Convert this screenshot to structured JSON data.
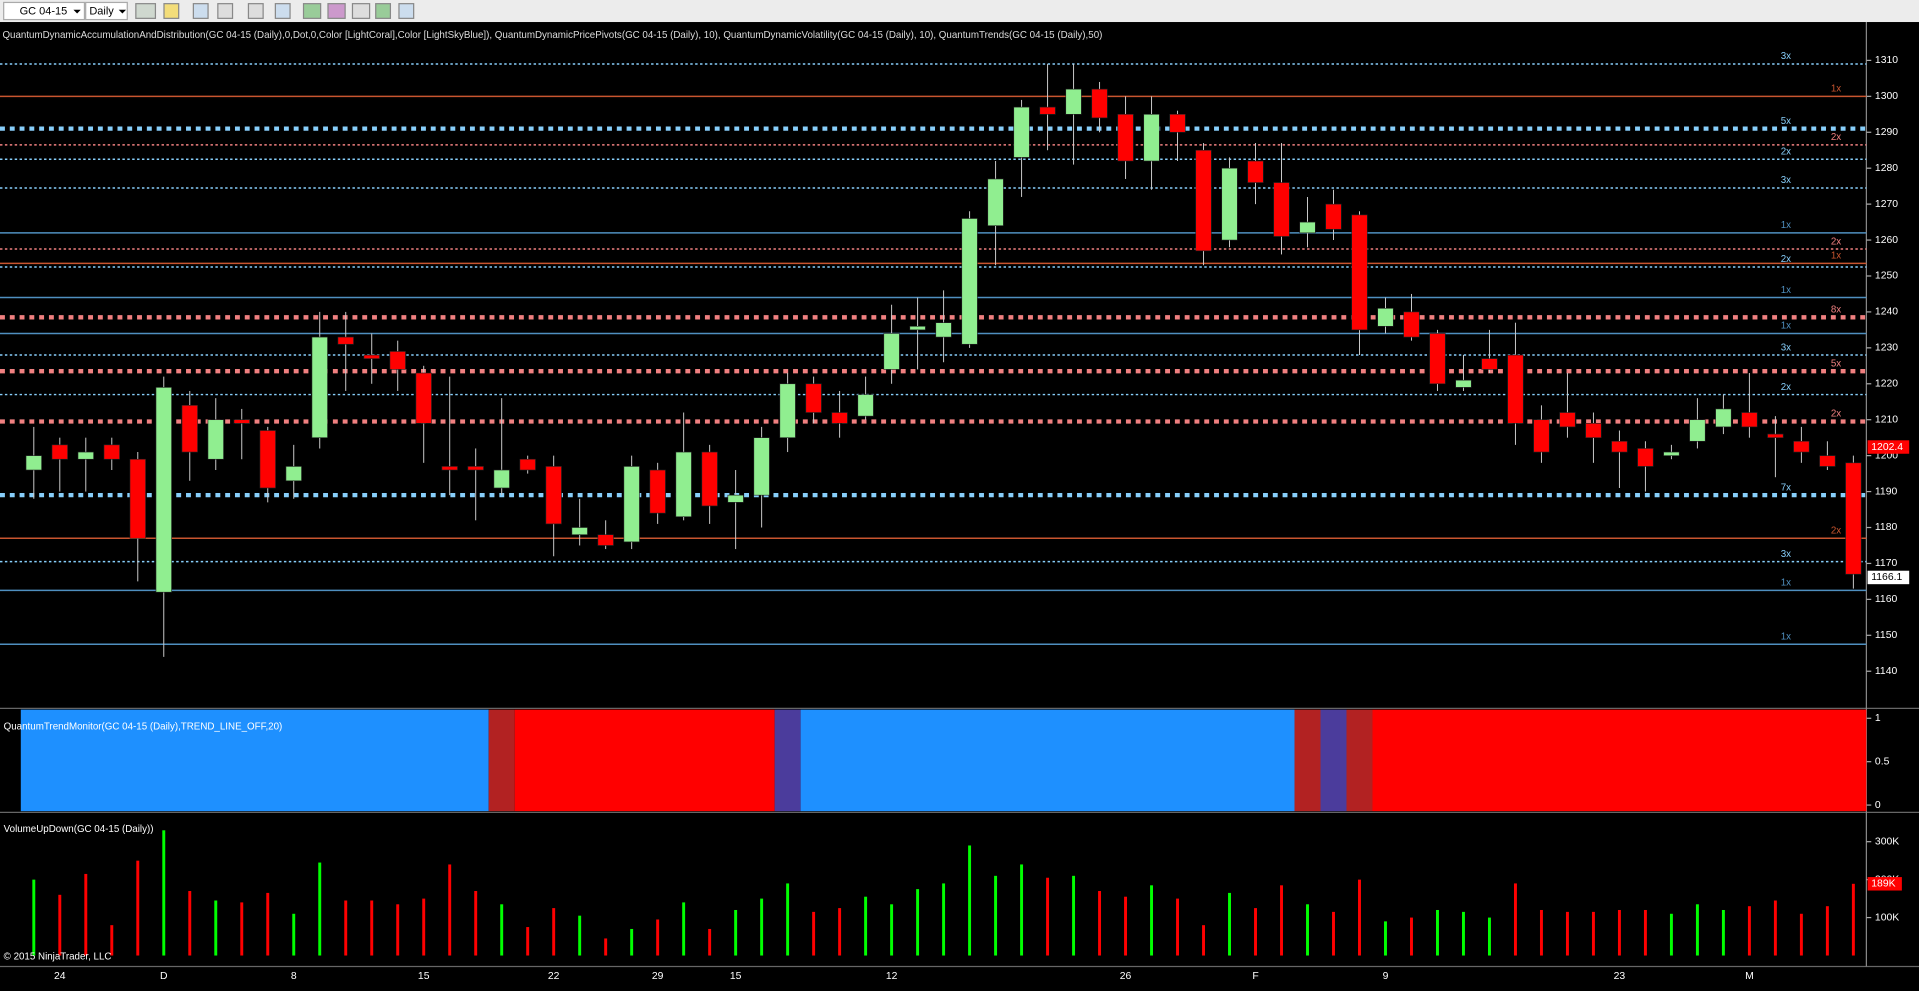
{
  "toolbar": {
    "instrument": "GC 04-15",
    "period": "Daily"
  },
  "copyright": "© 2015 NinjaTrader, LLC",
  "chart_data": [
    {
      "type": "candlestick",
      "title": "QuantumDynamicAccumulationAndDistribution(GC 04-15 (Daily),0,Dot,0,Color [LightCoral],Color [LightSkyBlue]), QuantumDynamicPricePivots(GC 04-15 (Daily), 10), QuantumDynamicVolatility(GC 04-15 (Daily), 10), QuantumTrends(GC 04-15 (Daily),50)",
      "categories": [
        null,
        "24",
        null,
        null,
        null,
        "D",
        null,
        null,
        null,
        null,
        "8",
        null,
        null,
        null,
        null,
        "15",
        null,
        null,
        null,
        null,
        "22",
        null,
        null,
        null,
        "29",
        null,
        null,
        "15",
        null,
        null,
        null,
        null,
        null,
        "12",
        null,
        null,
        null,
        null,
        null,
        null,
        null,
        null,
        "26",
        null,
        null,
        null,
        null,
        "F",
        null,
        null,
        null,
        null,
        "9",
        null,
        null,
        null,
        null,
        null,
        null,
        null,
        null,
        "23",
        null,
        null,
        null,
        null,
        "M",
        null,
        null,
        null,
        null
      ],
      "open": [
        1196,
        1203,
        1199,
        1203,
        1199,
        1162,
        1214,
        1199,
        1210,
        1207,
        1193,
        1205,
        1233,
        1228,
        1229,
        1223,
        1197,
        1197,
        1191,
        1199,
        1197,
        1178,
        1178,
        1176,
        1196,
        1183,
        1201,
        1187,
        1189,
        1205,
        1220,
        1212,
        1211,
        1224,
        1235,
        1233,
        1231,
        1264,
        1283,
        1297,
        1295,
        1302,
        1295,
        1282,
        1295,
        1285,
        1260,
        1282,
        1276,
        1262,
        1270,
        1267,
        1236,
        1240,
        1234,
        1219,
        1227,
        1228,
        1210,
        1212,
        1209,
        1204,
        1202,
        1200,
        1204,
        1208,
        1212,
        1206,
        1204,
        1200,
        1198
      ],
      "high": [
        1208,
        1205,
        1205,
        1205,
        1201,
        1222,
        1218,
        1216,
        1213,
        1208,
        1203,
        1240,
        1240,
        1234,
        1232,
        1225,
        1222,
        1202,
        1216,
        1200,
        1200,
        1188,
        1182,
        1200,
        1198,
        1212,
        1203,
        1196,
        1208,
        1223,
        1222,
        1218,
        1222,
        1242,
        1244,
        1246,
        1268,
        1282,
        1299,
        1309,
        1309,
        1304,
        1300,
        1300,
        1296,
        1287,
        1283,
        1287,
        1287,
        1272,
        1274,
        1268,
        1244,
        1245,
        1235,
        1228,
        1235,
        1237,
        1214,
        1223,
        1212,
        1207,
        1204,
        1203,
        1216,
        1217,
        1223,
        1211,
        1208,
        1204,
        1200
      ],
      "low": [
        1188,
        1190,
        1190,
        1196,
        1165,
        1144,
        1193,
        1196,
        1199,
        1187,
        1188,
        1202,
        1218,
        1220,
        1218,
        1198,
        1189,
        1182,
        1189,
        1195,
        1172,
        1175,
        1174,
        1174,
        1181,
        1182,
        1181,
        1174,
        1180,
        1201,
        1209,
        1205,
        1210,
        1220,
        1224,
        1226,
        1230,
        1253,
        1272,
        1285,
        1281,
        1290,
        1277,
        1274,
        1282,
        1253,
        1258,
        1270,
        1256,
        1258,
        1260,
        1228,
        1234,
        1232,
        1218,
        1218,
        1223,
        1203,
        1198,
        1205,
        1198,
        1191,
        1190,
        1199,
        1202,
        1206,
        1205,
        1194,
        1198,
        1196,
        1163
      ],
      "close": [
        1200,
        1199,
        1201,
        1199,
        1177,
        1219,
        1201,
        1210,
        1209,
        1191,
        1197,
        1233,
        1231,
        1227,
        1224,
        1209,
        1196,
        1196,
        1196,
        1196,
        1181,
        1180,
        1175,
        1197,
        1184,
        1201,
        1186,
        1189,
        1205,
        1220,
        1212,
        1209,
        1217,
        1234,
        1236,
        1237,
        1266,
        1277,
        1297,
        1295,
        1302,
        1294,
        1282,
        1295,
        1290,
        1257,
        1280,
        1276,
        1261,
        1265,
        1263,
        1235,
        1241,
        1233,
        1220,
        1221,
        1224,
        1209,
        1201,
        1208,
        1205,
        1201,
        1197,
        1201,
        1210,
        1213,
        1208,
        1205,
        1201,
        1197,
        1167
      ],
      "up_color": "#90ee90",
      "down_color": "#ff0000",
      "ylim": [
        1130,
        1320
      ],
      "yticks": [
        1140,
        1150,
        1160,
        1170,
        1180,
        1190,
        1200,
        1210,
        1220,
        1230,
        1240,
        1250,
        1260,
        1270,
        1280,
        1290,
        1300,
        1310
      ],
      "levels": [
        {
          "value": 1309,
          "label": "3x",
          "color": "#87cefa",
          "dotted": true,
          "heavy": false
        },
        {
          "value": 1300,
          "label": "1x",
          "color": "#c8552f",
          "dotted": false,
          "heavy": false
        },
        {
          "value": 1291,
          "label": "5x",
          "color": "#87cefa",
          "dotted": true,
          "heavy": true
        },
        {
          "value": 1286.5,
          "label": "2x",
          "color": "#f08080",
          "dotted": true,
          "heavy": false
        },
        {
          "value": 1282.5,
          "label": "2x",
          "color": "#87cefa",
          "dotted": true,
          "heavy": false
        },
        {
          "value": 1274.5,
          "label": "3x",
          "color": "#87cefa",
          "dotted": true,
          "heavy": false
        },
        {
          "value": 1262,
          "label": "1x",
          "color": "#4f8fbf",
          "dotted": false,
          "heavy": false
        },
        {
          "value": 1257.5,
          "label": "2x",
          "color": "#f08080",
          "dotted": true,
          "heavy": false
        },
        {
          "value": 1253.5,
          "label": "1x",
          "color": "#c8552f",
          "dotted": false,
          "heavy": false
        },
        {
          "value": 1252.5,
          "label": "2x",
          "color": "#87cefa",
          "dotted": true,
          "heavy": false
        },
        {
          "value": 1244,
          "label": "1x",
          "color": "#4f8fbf",
          "dotted": false,
          "heavy": false
        },
        {
          "value": 1238.5,
          "label": "8x",
          "color": "#f08080",
          "dotted": true,
          "heavy": true
        },
        {
          "value": 1234,
          "label": "1x",
          "color": "#4f8fbf",
          "dotted": false,
          "heavy": false
        },
        {
          "value": 1228,
          "label": "3x",
          "color": "#87cefa",
          "dotted": true,
          "heavy": false
        },
        {
          "value": 1223.5,
          "label": "5x",
          "color": "#f08080",
          "dotted": true,
          "heavy": true
        },
        {
          "value": 1217,
          "label": "2x",
          "color": "#87cefa",
          "dotted": true,
          "heavy": false
        },
        {
          "value": 1209.5,
          "label": "2x",
          "color": "#f08080",
          "dotted": true,
          "heavy": true
        },
        {
          "value": 1189,
          "label": "7x",
          "color": "#87cefa",
          "dotted": true,
          "heavy": true
        },
        {
          "value": 1177,
          "label": "2x",
          "color": "#c8552f",
          "dotted": false,
          "heavy": false
        },
        {
          "value": 1170.5,
          "label": "3x",
          "color": "#87cefa",
          "dotted": true,
          "heavy": false
        },
        {
          "value": 1162.5,
          "label": "1x",
          "color": "#4f8fbf",
          "dotted": false,
          "heavy": false
        },
        {
          "value": 1147.5,
          "label": "1x",
          "color": "#4f8fbf",
          "dotted": false,
          "heavy": false
        }
      ],
      "markers": [
        {
          "value": 1202.4,
          "color": "#ff0000"
        },
        {
          "value": 1166.1,
          "color": "#ffffff"
        }
      ]
    },
    {
      "type": "bands",
      "title": "QuantumTrendMonitor(GC 04-15 (Daily),TREND_LINE_OFF,20)",
      "bands": [
        {
          "start": 0,
          "end": 17,
          "color": "#1e90ff"
        },
        {
          "start": 18,
          "end": 18,
          "color": "#b22222"
        },
        {
          "start": 19,
          "end": 28,
          "color": "#ff0000"
        },
        {
          "start": 29,
          "end": 29,
          "color": "#4b3c9c"
        },
        {
          "start": 30,
          "end": 48,
          "color": "#1e90ff"
        },
        {
          "start": 49,
          "end": 49,
          "color": "#b22222"
        },
        {
          "start": 50,
          "end": 50,
          "color": "#4b3c9c"
        },
        {
          "start": 51,
          "end": 51,
          "color": "#b22222"
        },
        {
          "start": 52,
          "end": 70,
          "color": "#ff0000"
        }
      ],
      "ylim": [
        -0.07,
        1.1
      ],
      "yticks": [
        0,
        0.5,
        1
      ]
    },
    {
      "type": "bar",
      "title": "VolumeUpDown(GC 04-15 (Daily))",
      "values": [
        200000,
        160000,
        215000,
        80000,
        250000,
        330000,
        170000,
        145000,
        140000,
        165000,
        110000,
        245000,
        145000,
        145000,
        135000,
        150000,
        240000,
        170000,
        135000,
        75000,
        125000,
        105000,
        45000,
        70000,
        95000,
        140000,
        70000,
        120000,
        150000,
        190000,
        115000,
        125000,
        155000,
        135000,
        175000,
        190000,
        290000,
        210000,
        240000,
        205000,
        210000,
        170000,
        155000,
        185000,
        150000,
        80000,
        165000,
        125000,
        185000,
        135000,
        115000,
        200000,
        90000,
        100000,
        120000,
        115000,
        100000,
        190000,
        120000,
        115000,
        115000,
        120000,
        120000,
        110000,
        135000,
        120000,
        130000,
        145000,
        110000,
        130000,
        189000
      ],
      "colors": [
        "#0f0",
        "#f00",
        "#f00",
        "#f00",
        "#f00",
        "#0f0",
        "#f00",
        "#0f0",
        "#f00",
        "#f00",
        "#0f0",
        "#0f0",
        "#f00",
        "#f00",
        "#f00",
        "#f00",
        "#f00",
        "#f00",
        "#0f0",
        "#f00",
        "#f00",
        "#0f0",
        "#f00",
        "#0f0",
        "#f00",
        "#0f0",
        "#f00",
        "#0f0",
        "#0f0",
        "#0f0",
        "#f00",
        "#f00",
        "#0f0",
        "#0f0",
        "#0f0",
        "#0f0",
        "#0f0",
        "#0f0",
        "#0f0",
        "#f00",
        "#0f0",
        "#f00",
        "#f00",
        "#0f0",
        "#f00",
        "#f00",
        "#0f0",
        "#f00",
        "#f00",
        "#0f0",
        "#f00",
        "#f00",
        "#0f0",
        "#f00",
        "#0f0",
        "#0f0",
        "#0f0",
        "#f00",
        "#f00",
        "#f00",
        "#f00",
        "#f00",
        "#f00",
        "#0f0",
        "#0f0",
        "#0f0",
        "#f00",
        "#f00",
        "#f00",
        "#f00",
        "#f00"
      ],
      "ylim": [
        -29000,
        374000
      ],
      "yticks": [
        {
          "value": 100000,
          "label": "100K"
        },
        {
          "value": 200000,
          "label": "200K"
        },
        {
          "value": 300000,
          "label": "300K"
        }
      ],
      "markers": [
        {
          "value": 189000,
          "label": "189K",
          "color": "#ff0000"
        }
      ]
    }
  ]
}
